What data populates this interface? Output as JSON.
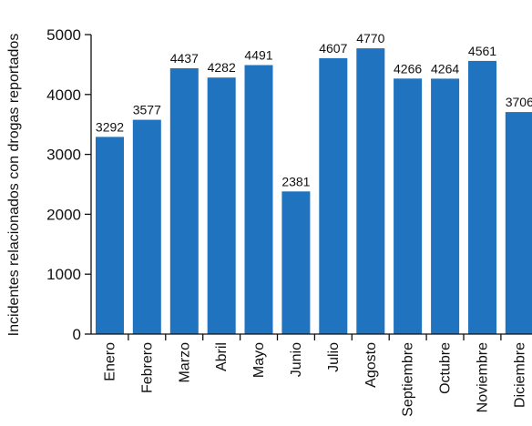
{
  "chart_data": {
    "type": "bar",
    "title": "",
    "xlabel": "",
    "ylabel": "Incidentes relacionados con drogas reportados",
    "categories": [
      "Enero",
      "Febrero",
      "Marzo",
      "Abril",
      "Mayo",
      "Junio",
      "Julio",
      "Agosto",
      "Septiembre",
      "Octubre",
      "Noviembre",
      "Diciembre"
    ],
    "values": [
      3292,
      3577,
      4437,
      4282,
      4491,
      2381,
      4607,
      4770,
      4266,
      4264,
      4561,
      3706
    ],
    "ylim": [
      0,
      5000
    ],
    "yticks": [
      0,
      1000,
      2000,
      3000,
      4000,
      5000
    ],
    "grid": false,
    "bar_color": "#1f73bf"
  }
}
